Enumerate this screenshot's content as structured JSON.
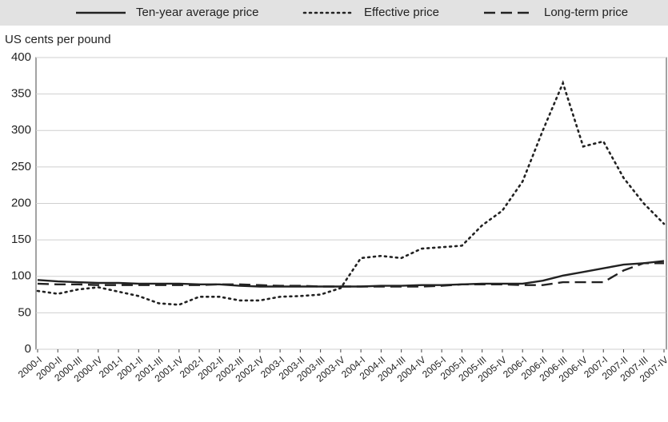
{
  "chart_data": {
    "type": "line",
    "y_label": "US cents per pound",
    "categories": [
      "2000-I",
      "2000-II",
      "2000-III",
      "2000-IV",
      "2001-I",
      "2001-II",
      "2001-III",
      "2001-IV",
      "2002-I",
      "2002-II",
      "2002-III",
      "2002-IV",
      "2003-I",
      "2003-II",
      "2003-III",
      "2003-IV",
      "2004-I",
      "2004-II",
      "2004-III",
      "2004-IV",
      "2005-I",
      "2005-II",
      "2005-III",
      "2005-IV",
      "2006-I",
      "2006-II",
      "2006-III",
      "2006-IV",
      "2007-I",
      "2007-II",
      "2007-III",
      "2007-IV"
    ],
    "series": [
      {
        "name": "Ten-year average price",
        "color": "#222222",
        "style": "solid",
        "values": [
          95,
          93,
          92,
          91,
          91,
          90,
          90,
          90,
          89,
          89,
          87,
          86,
          86,
          86,
          86,
          86,
          86,
          87,
          87,
          88,
          88,
          89,
          90,
          90,
          90,
          94,
          101,
          106,
          111,
          116,
          118,
          121
        ]
      },
      {
        "name": "Effective price",
        "color": "#222222",
        "style": "dotted",
        "values": [
          80,
          76,
          82,
          85,
          79,
          73,
          63,
          61,
          72,
          72,
          67,
          67,
          72,
          73,
          75,
          84,
          125,
          128,
          125,
          138,
          140,
          142,
          170,
          190,
          230,
          300,
          365,
          278,
          285,
          235,
          200,
          172
        ]
      },
      {
        "name": "Long-term price",
        "color": "#222222",
        "style": "dashed",
        "values": [
          90,
          89,
          89,
          88,
          88,
          88,
          88,
          88,
          88,
          89,
          89,
          88,
          87,
          87,
          86,
          86,
          86,
          86,
          86,
          86,
          87,
          89,
          89,
          89,
          88,
          88,
          92,
          92,
          92,
          108,
          118,
          118
        ]
      }
    ],
    "ylim": [
      0,
      400
    ],
    "yticks": [
      0,
      50,
      100,
      150,
      200,
      250,
      300,
      350,
      400
    ],
    "grid": true
  }
}
